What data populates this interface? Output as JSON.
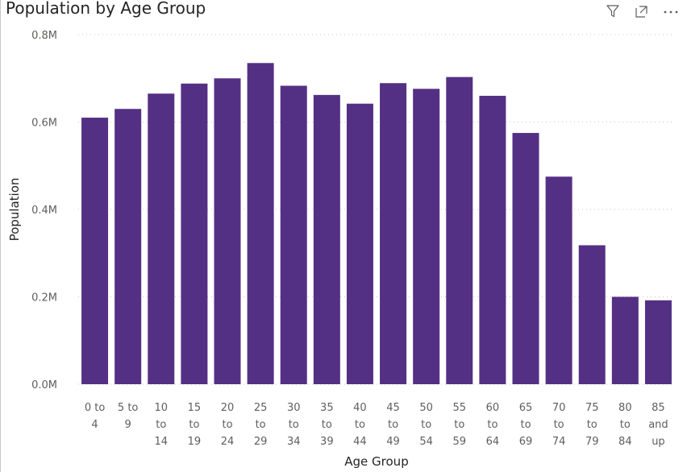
{
  "title": "Population by Age Group",
  "toolbar": {
    "filter_icon": "filter-icon",
    "focus_icon": "focus-mode-icon",
    "more_icon": "more-options-icon"
  },
  "colors": {
    "bar": "#543084",
    "grid": "#c8c6c4",
    "text": "#605e5c"
  },
  "chart_data": {
    "type": "bar",
    "title": "Population by Age Group",
    "xlabel": "Age Group",
    "ylabel": "Population",
    "ylim": [
      0,
      800000
    ],
    "yticks": [
      0,
      200000,
      400000,
      600000,
      800000
    ],
    "ytick_labels": [
      "0.0M",
      "0.2M",
      "0.4M",
      "0.6M",
      "0.8M"
    ],
    "grid": true,
    "categories": [
      [
        "0 to",
        "4"
      ],
      [
        "5 to",
        "9"
      ],
      [
        "10",
        "to",
        "14"
      ],
      [
        "15",
        "to",
        "19"
      ],
      [
        "20",
        "to",
        "24"
      ],
      [
        "25",
        "to",
        "29"
      ],
      [
        "30",
        "to",
        "34"
      ],
      [
        "35",
        "to",
        "39"
      ],
      [
        "40",
        "to",
        "44"
      ],
      [
        "45",
        "to",
        "49"
      ],
      [
        "50",
        "to",
        "54"
      ],
      [
        "55",
        "to",
        "59"
      ],
      [
        "60",
        "to",
        "64"
      ],
      [
        "65",
        "to",
        "69"
      ],
      [
        "70",
        "to",
        "74"
      ],
      [
        "75",
        "to",
        "79"
      ],
      [
        "80",
        "to",
        "84"
      ],
      [
        "85",
        "and",
        "up"
      ]
    ],
    "values": [
      610000,
      630000,
      665000,
      688000,
      700000,
      735000,
      683000,
      662000,
      642000,
      689000,
      676000,
      703000,
      660000,
      575000,
      475000,
      318000,
      200000,
      192000
    ]
  }
}
